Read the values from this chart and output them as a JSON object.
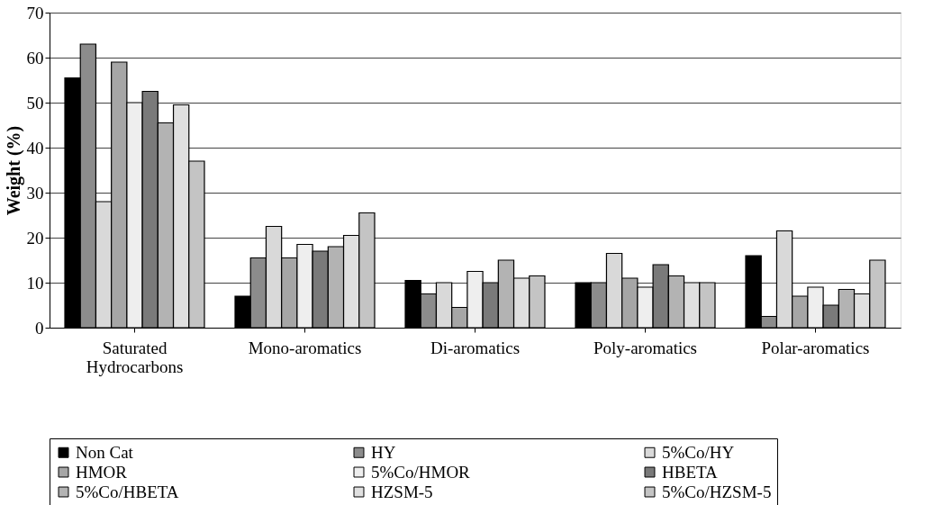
{
  "chart_data": {
    "type": "bar",
    "ylabel": "Weight (%)",
    "categories": [
      "Saturated Hydrocarbons",
      "Mono-aromatics",
      "Di-aromatics",
      "Poly-aromatics",
      "Polar-aromatics"
    ],
    "series": [
      {
        "name": "Non Cat",
        "color": "#000000",
        "values": [
          55.5,
          7,
          10.5,
          10,
          16
        ]
      },
      {
        "name": "HY",
        "color": "#8c8c8c",
        "values": [
          63,
          15.5,
          7.5,
          10,
          2.5
        ]
      },
      {
        "name": "5%Co/HY",
        "color": "#d9d9d9",
        "values": [
          28,
          22.5,
          10,
          16.5,
          21.5
        ]
      },
      {
        "name": "HMOR",
        "color": "#a6a6a6",
        "values": [
          59,
          15.5,
          4.5,
          11,
          7
        ]
      },
      {
        "name": "5%Co/HMOR",
        "color": "#eeeeee",
        "values": [
          50,
          18.5,
          12.5,
          9,
          9
        ]
      },
      {
        "name": "HBETA",
        "color": "#7a7a7a",
        "values": [
          52.5,
          17,
          10,
          14,
          5
        ]
      },
      {
        "name": "5%Co/HBETA",
        "color": "#b3b3b3",
        "values": [
          45.5,
          18,
          15,
          11.5,
          8.5
        ]
      },
      {
        "name": "HZSM-5",
        "color": "#e0e0e0",
        "values": [
          49.5,
          20.5,
          11,
          10,
          7.5
        ]
      },
      {
        "name": "5%Co/HZSM-5",
        "color": "#c4c4c4",
        "values": [
          37,
          25.5,
          11.5,
          10,
          15
        ]
      }
    ],
    "ylim": [
      0,
      70
    ],
    "yticks": [
      0,
      10,
      20,
      30,
      40,
      50,
      60,
      70
    ],
    "grid": "y",
    "legend": "bottom"
  }
}
